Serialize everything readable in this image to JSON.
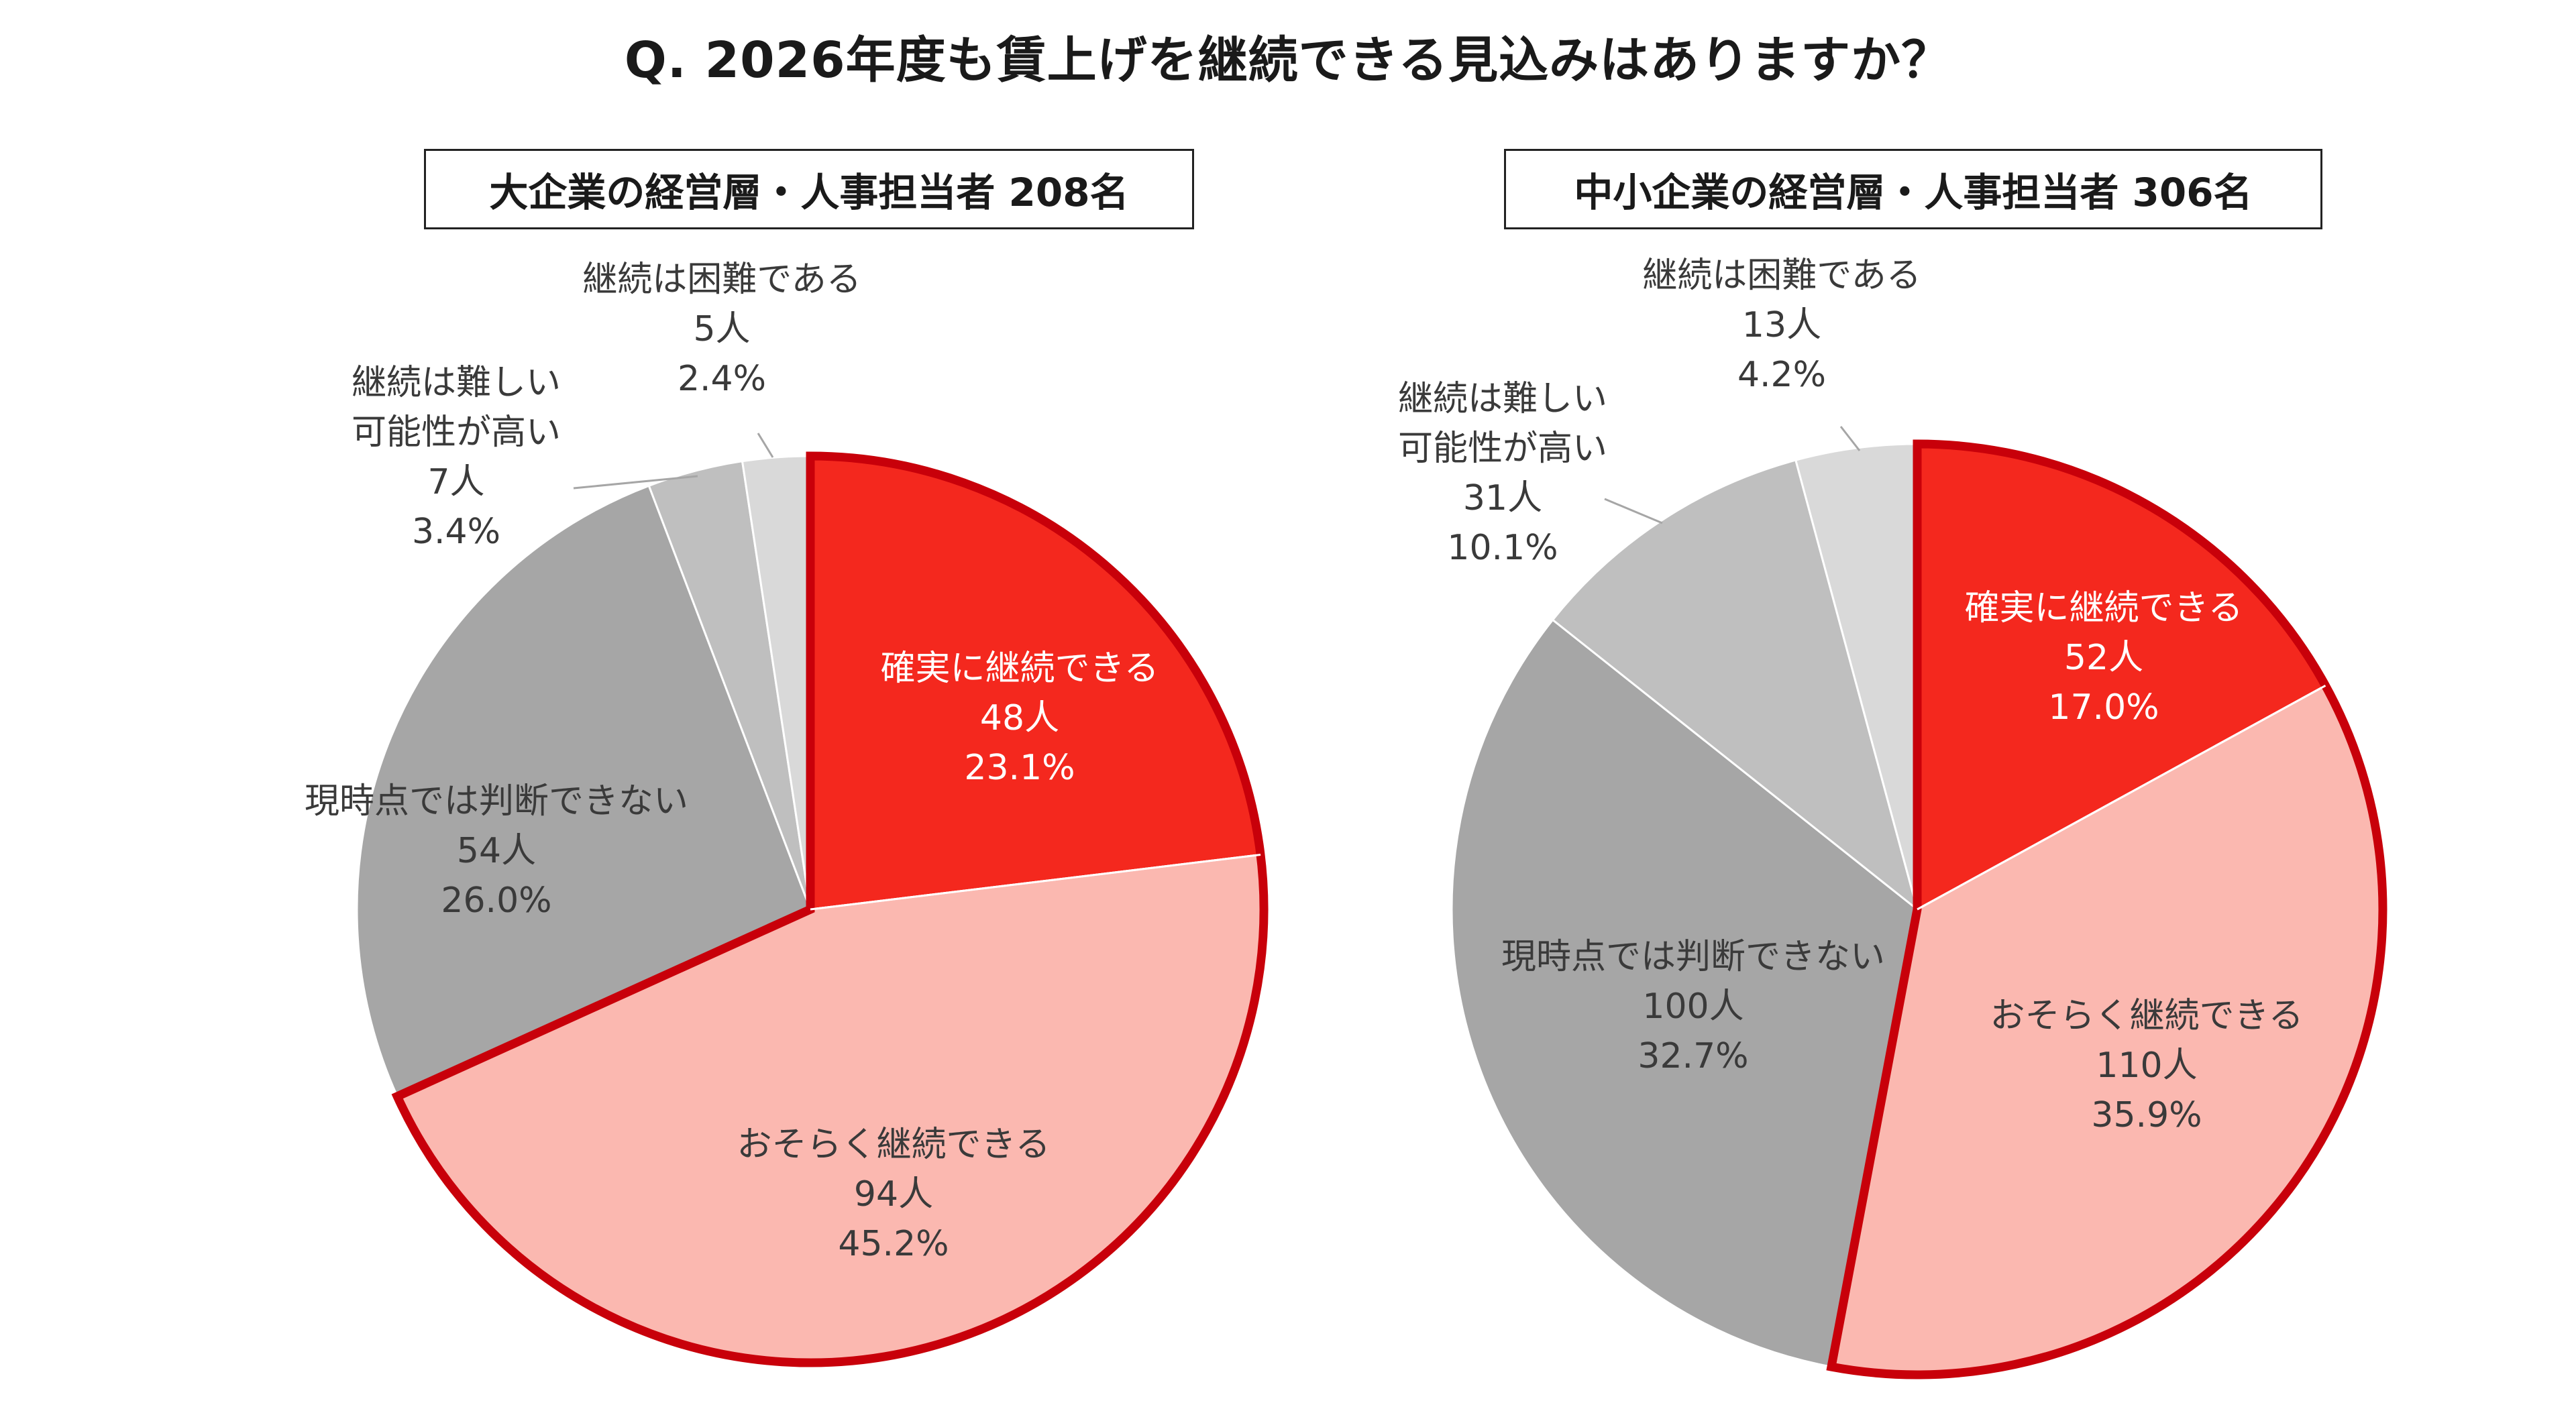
{
  "title": "Q. 2026年度も賃上げを継続できる見込みはありますか？",
  "chart_data": [
    {
      "type": "pie",
      "group_label": "大企業の経営層・人事担当者 208名",
      "slices": [
        {
          "name": "確実に継続できる",
          "count": "48人",
          "percent": "23.1%",
          "value": 23.1,
          "color": "#f4281e",
          "highlight": true
        },
        {
          "name": "おそらく継続できる",
          "count": "94人",
          "percent": "45.2%",
          "value": 45.2,
          "color": "#fbb8b0",
          "highlight": true
        },
        {
          "name": "現時点では判断できない",
          "count": "54人",
          "percent": "26.0%",
          "value": 26.0,
          "color": "#a6a6a6",
          "highlight": false
        },
        {
          "name": "継続は難しい\n可能性が高い",
          "count": "7人",
          "percent": "3.4%",
          "value": 3.4,
          "color": "#bfbfbf",
          "highlight": false
        },
        {
          "name": "継続は困難である",
          "count": "5人",
          "percent": "2.4%",
          "value": 2.4,
          "color": "#d9d9d9",
          "highlight": false
        }
      ]
    },
    {
      "type": "pie",
      "group_label": "中小企業の経営層・人事担当者 306名",
      "slices": [
        {
          "name": "確実に継続できる",
          "count": "52人",
          "percent": "17.0%",
          "value": 17.0,
          "color": "#f4281e",
          "highlight": true
        },
        {
          "name": "おそらく継続できる",
          "count": "110人",
          "percent": "35.9%",
          "value": 35.9,
          "color": "#fbb8b0",
          "highlight": true
        },
        {
          "name": "現時点では判断できない",
          "count": "100人",
          "percent": "32.7%",
          "value": 32.7,
          "color": "#a6a6a6",
          "highlight": false
        },
        {
          "name": "継続は難しい\n可能性が高い",
          "count": "31人",
          "percent": "10.1%",
          "value": 10.1,
          "color": "#bfbfbf",
          "highlight": false
        },
        {
          "name": "継続は困難である",
          "count": "13人",
          "percent": "4.2%",
          "value": 4.2,
          "color": "#d9d9d9",
          "highlight": false
        }
      ]
    }
  ],
  "colors": {
    "highlight_border": "#c8000a",
    "leader_line": "#a6a6a6"
  }
}
